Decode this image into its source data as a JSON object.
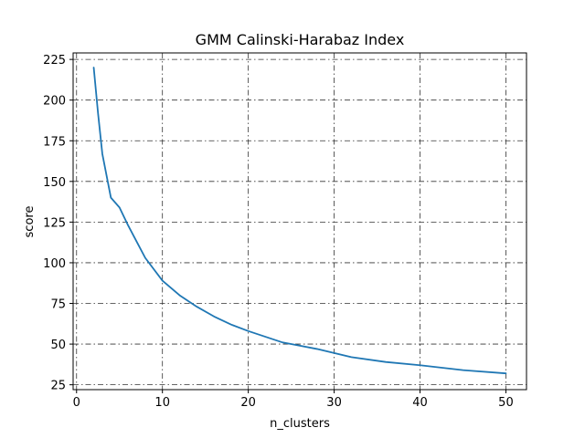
{
  "chart_data": {
    "type": "line",
    "title": "GMM Calinski-Harabaz Index",
    "xlabel": "n_clusters",
    "ylabel": "score",
    "xlim": [
      -0.4,
      52.4
    ],
    "ylim": [
      22.0,
      229.0
    ],
    "xticks": [
      0,
      10,
      20,
      30,
      40,
      50
    ],
    "yticks": [
      25,
      50,
      75,
      100,
      125,
      150,
      175,
      200,
      225
    ],
    "grid": true,
    "grid_style": "dash-dot",
    "line_color": "#1f77b4",
    "series": [
      {
        "x": [
          2,
          2.5,
          3,
          4,
          5,
          6,
          7,
          8,
          10,
          12,
          14,
          16,
          18,
          20,
          24,
          28,
          32,
          36,
          40,
          45,
          50
        ],
        "values": [
          220,
          192,
          167,
          140,
          134,
          123,
          113,
          103,
          89,
          80,
          73,
          67,
          62,
          58,
          51,
          47,
          42,
          39,
          37,
          34,
          32
        ]
      }
    ]
  }
}
